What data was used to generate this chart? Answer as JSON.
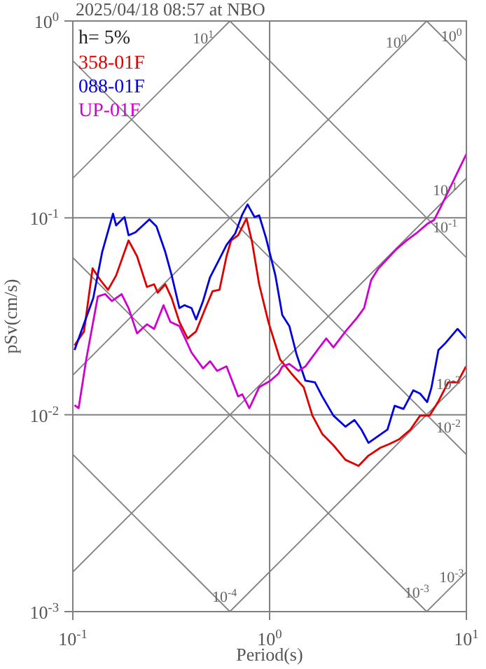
{
  "chart_data": {
    "type": "line",
    "title": "2025/04/18 08:57 at NBO",
    "xlabel": "Period(s)",
    "ylabel": "pSv(cm/s)",
    "log": "xy",
    "grid": true,
    "legend": "top left",
    "xlim": [
      0.1,
      10
    ],
    "ylim": [
      0.001,
      1
    ],
    "xticks": [
      {
        "value": 0.1,
        "label": "10$^{-1}$"
      },
      {
        "value": 1,
        "label": "10$^{0}$"
      },
      {
        "value": 10,
        "label": "10$^{1}$"
      }
    ],
    "yticks": [
      {
        "value": 0.001,
        "label": "10$^{-3}$"
      },
      {
        "value": 0.01,
        "label": "10$^{-2}$"
      },
      {
        "value": 0.1,
        "label": "10$^{-1}$"
      },
      {
        "value": 1,
        "label": "10$^{0}$"
      }
    ],
    "annotations": [
      "h= 5%",
      {
        "text": "10$^{1}$",
        "x": 0.46,
        "y": 0.732
      },
      {
        "text": "10$^{0}$",
        "x": 4.4,
        "y": 0.7
      },
      {
        "text": "10$^{0}$",
        "x": 8.4,
        "y": 0.748
      },
      {
        "text": "10$^{-1}$",
        "x": 7.8,
        "y": 0.124
      },
      {
        "text": "10$^{-1}$",
        "x": 7.8,
        "y": 0.0806
      },
      {
        "text": "10$^{-2}$",
        "x": 8.1,
        "y": 0.0129
      },
      {
        "text": "10$^{-2}$",
        "x": 8.1,
        "y": 0.00776
      },
      {
        "text": "10$^{-4}$",
        "x": 0.59,
        "y": 0.00107
      },
      {
        "text": "10$^{-3}$",
        "x": 5.6,
        "y": 0.00112
      },
      {
        "text": "10$^{-3}$",
        "x": 8.4,
        "y": 0.00134
      }
    ],
    "series": [
      {
        "color": "#808080",
        "x": [
          6.283,
          10
        ],
        "values": [
          1,
          0.628
        ]
      },
      {
        "color": "#808080",
        "x": [
          0.6283,
          10
        ],
        "values": [
          1,
          0.0628
        ]
      },
      {
        "color": "#808080",
        "x": [
          0.1,
          10
        ],
        "values": [
          0.628,
          0.00628
        ]
      },
      {
        "color": "#808080",
        "x": [
          0.1,
          6.283
        ],
        "values": [
          0.0628,
          0.001
        ]
      },
      {
        "color": "#808080",
        "x": [
          0.1,
          0.6283
        ],
        "values": [
          0.00628,
          0.001
        ]
      },
      {
        "color": "#808080",
        "x": [
          0.1,
          0.6283
        ],
        "values": [
          0.159,
          1
        ]
      },
      {
        "color": "#808080",
        "x": [
          0.1,
          6.283
        ],
        "values": [
          0.0159,
          1
        ]
      },
      {
        "color": "#808080",
        "x": [
          0.1,
          10
        ],
        "values": [
          0.00159,
          0.159
        ]
      },
      {
        "color": "#808080",
        "x": [
          0.6283,
          10
        ],
        "values": [
          0.001,
          0.0159
        ]
      },
      {
        "color": "#808080",
        "x": [
          6.283,
          10
        ],
        "values": [
          0.001,
          0.00159
        ]
      },
      {
        "name": "358-01F",
        "color": "#e00000",
        "x": [
          0.102,
          0.114,
          0.126,
          0.138,
          0.151,
          0.166,
          0.192,
          0.212,
          0.238,
          0.259,
          0.27,
          0.295,
          0.318,
          0.348,
          0.383,
          0.423,
          0.472,
          0.513,
          0.556,
          0.604,
          0.637,
          0.692,
          0.763,
          0.815,
          0.885,
          0.986,
          1.13,
          1.29,
          1.49,
          1.65,
          1.85,
          2.11,
          2.43,
          2.83,
          3.18,
          3.66,
          4.06,
          4.55,
          5.19,
          5.82,
          6.5,
          7.21,
          8.08,
          9.02,
          9.95
        ],
        "values": [
          0.0225,
          0.0265,
          0.0554,
          0.0483,
          0.0431,
          0.051,
          0.0768,
          0.0638,
          0.0446,
          0.046,
          0.0417,
          0.046,
          0.0391,
          0.0296,
          0.0244,
          0.0265,
          0.0348,
          0.0424,
          0.0431,
          0.0638,
          0.0768,
          0.0816,
          0.0994,
          0.0752,
          0.046,
          0.0296,
          0.0191,
          0.0162,
          0.0138,
          0.0099,
          0.008,
          0.007,
          0.0059,
          0.0055,
          0.0062,
          0.0068,
          0.0071,
          0.0075,
          0.0084,
          0.0099,
          0.0099,
          0.0117,
          0.0146,
          0.0146,
          0.0176
        ]
      },
      {
        "name": "088-01F",
        "color": "#0000e0",
        "x": [
          0.102,
          0.127,
          0.141,
          0.16,
          0.166,
          0.183,
          0.192,
          0.208,
          0.245,
          0.266,
          0.295,
          0.318,
          0.348,
          0.369,
          0.401,
          0.423,
          0.459,
          0.498,
          0.556,
          0.604,
          0.669,
          0.726,
          0.773,
          0.838,
          0.885,
          0.959,
          1.07,
          1.16,
          1.26,
          1.37,
          1.52,
          1.7,
          1.85,
          2.11,
          2.43,
          2.7,
          2.93,
          3.18,
          3.44,
          3.97,
          4.32,
          4.79,
          5.37,
          5.82,
          6.32,
          6.64,
          7.21,
          7.82,
          9.02,
          9.95
        ],
        "values": [
          0.0213,
          0.0391,
          0.0671,
          0.105,
          0.0916,
          0.101,
          0.0816,
          0.0844,
          0.0983,
          0.0905,
          0.0671,
          0.051,
          0.0348,
          0.036,
          0.0348,
          0.0305,
          0.0378,
          0.0499,
          0.0618,
          0.0728,
          0.0834,
          0.104,
          0.117,
          0.101,
          0.103,
          0.079,
          0.051,
          0.0321,
          0.0282,
          0.0203,
          0.0149,
          0.0146,
          0.0124,
          0.0099,
          0.0087,
          0.0094,
          0.0084,
          0.0072,
          0.0076,
          0.0084,
          0.0111,
          0.0107,
          0.0133,
          0.0128,
          0.0116,
          0.0137,
          0.0213,
          0.0231,
          0.0273,
          0.0244
        ]
      },
      {
        "name": "UP-01F",
        "color": "#d000d0",
        "x": [
          0.102,
          0.107,
          0.117,
          0.134,
          0.146,
          0.158,
          0.177,
          0.192,
          0.212,
          0.238,
          0.259,
          0.289,
          0.313,
          0.348,
          0.401,
          0.459,
          0.498,
          0.541,
          0.604,
          0.692,
          0.726,
          0.789,
          0.885,
          1.01,
          1.11,
          1.16,
          1.26,
          1.4,
          1.52,
          1.75,
          1.94,
          2.11,
          2.43,
          2.79,
          3.02,
          3.28,
          3.56,
          4.41,
          4.94,
          5.64,
          6.32,
          6.86,
          7.45,
          8.08,
          8.77,
          10
        ],
        "values": [
          0.0112,
          0.0108,
          0.0191,
          0.0399,
          0.041,
          0.0378,
          0.041,
          0.0348,
          0.0259,
          0.0288,
          0.0273,
          0.036,
          0.0296,
          0.0282,
          0.0207,
          0.0172,
          0.0187,
          0.0167,
          0.0176,
          0.0124,
          0.0127,
          0.0108,
          0.0138,
          0.0149,
          0.0162,
          0.0176,
          0.0181,
          0.0167,
          0.0176,
          0.0213,
          0.0244,
          0.022,
          0.0265,
          0.0312,
          0.0348,
          0.0483,
          0.0551,
          0.0693,
          0.0764,
          0.0844,
          0.0931,
          0.0977,
          0.115,
          0.136,
          0.161,
          0.211
        ]
      }
    ]
  }
}
